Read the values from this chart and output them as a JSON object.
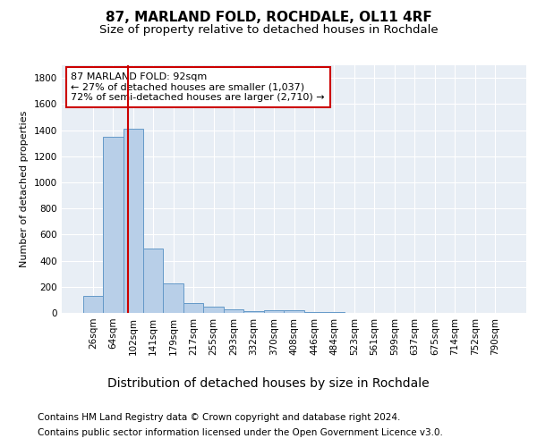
{
  "title": "87, MARLAND FOLD, ROCHDALE, OL11 4RF",
  "subtitle": "Size of property relative to detached houses in Rochdale",
  "xlabel": "Distribution of detached houses by size in Rochdale",
  "ylabel": "Number of detached properties",
  "footer_line1": "Contains HM Land Registry data © Crown copyright and database right 2024.",
  "footer_line2": "Contains public sector information licensed under the Open Government Licence v3.0.",
  "categories": [
    "26sqm",
    "64sqm",
    "102sqm",
    "141sqm",
    "179sqm",
    "217sqm",
    "255sqm",
    "293sqm",
    "332sqm",
    "370sqm",
    "408sqm",
    "446sqm",
    "484sqm",
    "523sqm",
    "561sqm",
    "599sqm",
    "637sqm",
    "675sqm",
    "714sqm",
    "752sqm",
    "790sqm"
  ],
  "values": [
    130,
    1350,
    1410,
    490,
    225,
    75,
    45,
    28,
    15,
    20,
    20,
    5,
    5,
    2,
    2,
    1,
    1,
    1,
    1,
    1,
    1
  ],
  "bar_color": "#b8cfe8",
  "bar_edge_color": "#6499c8",
  "red_line_x": 1.75,
  "annotation_text": "87 MARLAND FOLD: 92sqm\n← 27% of detached houses are smaller (1,037)\n72% of semi-detached houses are larger (2,710) →",
  "annotation_box_color": "#ffffff",
  "annotation_border_color": "#cc0000",
  "ylim": [
    0,
    1900
  ],
  "yticks": [
    0,
    200,
    400,
    600,
    800,
    1000,
    1200,
    1400,
    1600,
    1800
  ],
  "background_color": "#ffffff",
  "plot_bg_color": "#e8eef5",
  "grid_color": "#ffffff",
  "title_fontsize": 11,
  "subtitle_fontsize": 9.5,
  "xlabel_fontsize": 10,
  "ylabel_fontsize": 8,
  "tick_fontsize": 7.5,
  "annotation_fontsize": 8,
  "footer_fontsize": 7.5
}
